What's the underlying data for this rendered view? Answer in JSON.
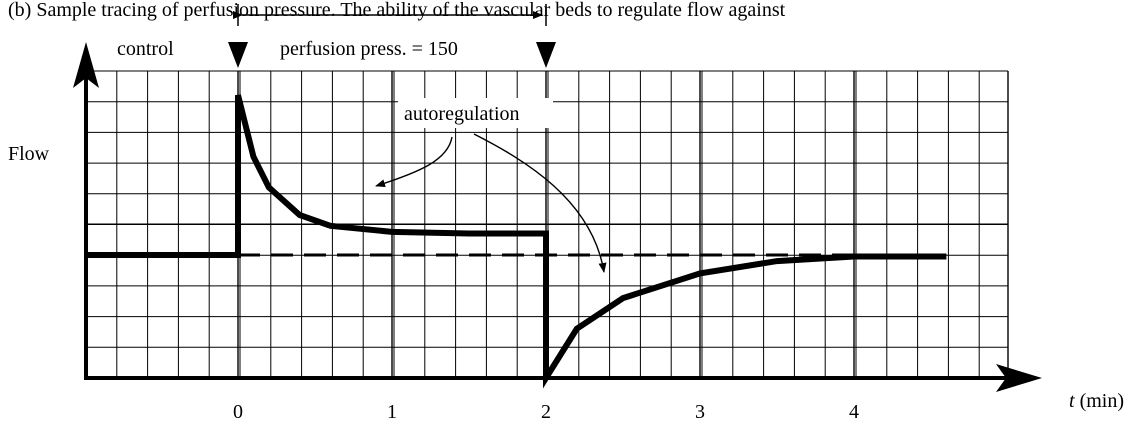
{
  "header_text": "(b)  Sample tracing of perfusion pressure. The ability of the vascular beds to regulate flow against",
  "labels": {
    "control": "control",
    "perfusion": "perfusion press. = 150",
    "autoregulation": "autoregulation",
    "y_axis": "Flow",
    "x_axis_var": "t",
    "x_axis_unit": " (min)"
  },
  "x_ticks": [
    "0",
    "1",
    "2",
    "3",
    "4"
  ],
  "colors": {
    "ink": "#000000",
    "background": "#ffffff"
  },
  "chart_data": {
    "type": "line",
    "xlabel": "t (min)",
    "ylabel": "Flow",
    "x_ticks": [
      0,
      1,
      2,
      3,
      4
    ],
    "events": [
      {
        "label": "control",
        "x_end": 0
      },
      {
        "label": "perfusion press. = 150",
        "x_start": 0,
        "x_end": 2
      }
    ],
    "series": [
      {
        "values_description": "flow tracing",
        "points": [
          [
            -1.0,
            4.0
          ],
          [
            0.0,
            4.0
          ],
          [
            0.0,
            9.2
          ],
          [
            0.1,
            7.2
          ],
          [
            0.2,
            6.2
          ],
          [
            0.4,
            5.3
          ],
          [
            0.6,
            4.95
          ],
          [
            1.0,
            4.75
          ],
          [
            1.5,
            4.7
          ],
          [
            2.0,
            4.7
          ],
          [
            2.0,
            0.0
          ],
          [
            2.2,
            1.6
          ],
          [
            2.5,
            2.6
          ],
          [
            3.0,
            3.4
          ],
          [
            3.5,
            3.8
          ],
          [
            4.0,
            3.95
          ],
          [
            4.6,
            3.95
          ]
        ]
      },
      {
        "values_description": "baseline reference (dashed)",
        "points": [
          [
            0.0,
            4.0
          ],
          [
            4.6,
            4.0
          ]
        ]
      }
    ]
  }
}
